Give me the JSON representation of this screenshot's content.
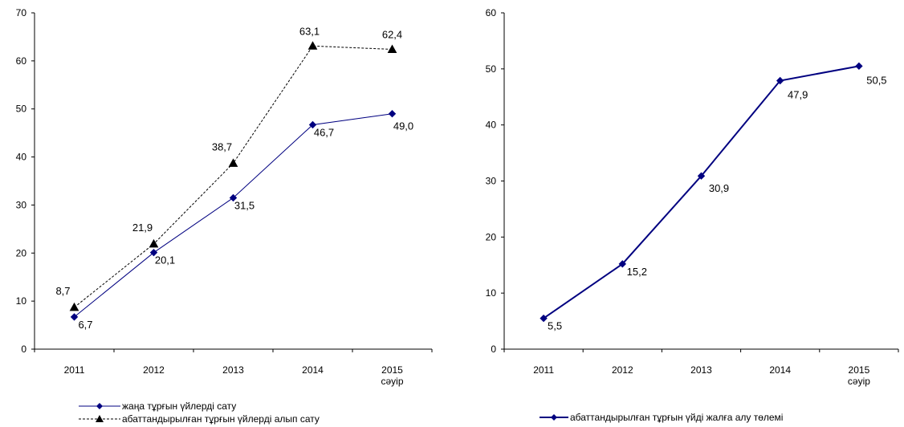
{
  "chart_data": [
    {
      "type": "line",
      "categories": [
        [
          "2011"
        ],
        [
          "2012"
        ],
        [
          "2013"
        ],
        [
          "2014"
        ],
        [
          "2015",
          "сәуір"
        ]
      ],
      "ylim": [
        0,
        70
      ],
      "yticks": [
        0,
        10,
        20,
        30,
        40,
        50,
        60,
        70
      ],
      "grid": false,
      "legend_position": "bottom-left",
      "series": [
        {
          "name": "жаңа тұрғын үйлерді сату",
          "values": [
            6.7,
            20.1,
            31.5,
            46.7,
            49.0
          ],
          "labels": [
            "6,7",
            "20,1",
            "31,5",
            "46,7",
            "49,0"
          ],
          "color": "#000080",
          "marker": "diamond",
          "line_style": "solid"
        },
        {
          "name": "абаттандырылған тұрғын үйлерді алып сату",
          "values": [
            8.7,
            21.9,
            38.7,
            63.1,
            62.4
          ],
          "labels": [
            "8,7",
            "21,9",
            "38,7",
            "63,1",
            "62,4"
          ],
          "color": "#000000",
          "marker": "triangle",
          "line_style": "dashed"
        }
      ]
    },
    {
      "type": "line",
      "categories": [
        [
          "2011"
        ],
        [
          "2012"
        ],
        [
          "2013"
        ],
        [
          "2014"
        ],
        [
          "2015",
          "сәуір"
        ]
      ],
      "ylim": [
        0,
        60
      ],
      "yticks": [
        0,
        10,
        20,
        30,
        40,
        50,
        60
      ],
      "grid": false,
      "legend_position": "bottom-center",
      "series": [
        {
          "name": "абаттандырылған тұрғын үйді жалға алу төлемі",
          "values": [
            5.5,
            15.2,
            30.9,
            47.9,
            50.5
          ],
          "labels": [
            "5,5",
            "15,2",
            "30,9",
            "47,9",
            "50,5"
          ],
          "color": "#000080",
          "marker": "diamond",
          "line_style": "solid"
        }
      ]
    }
  ]
}
